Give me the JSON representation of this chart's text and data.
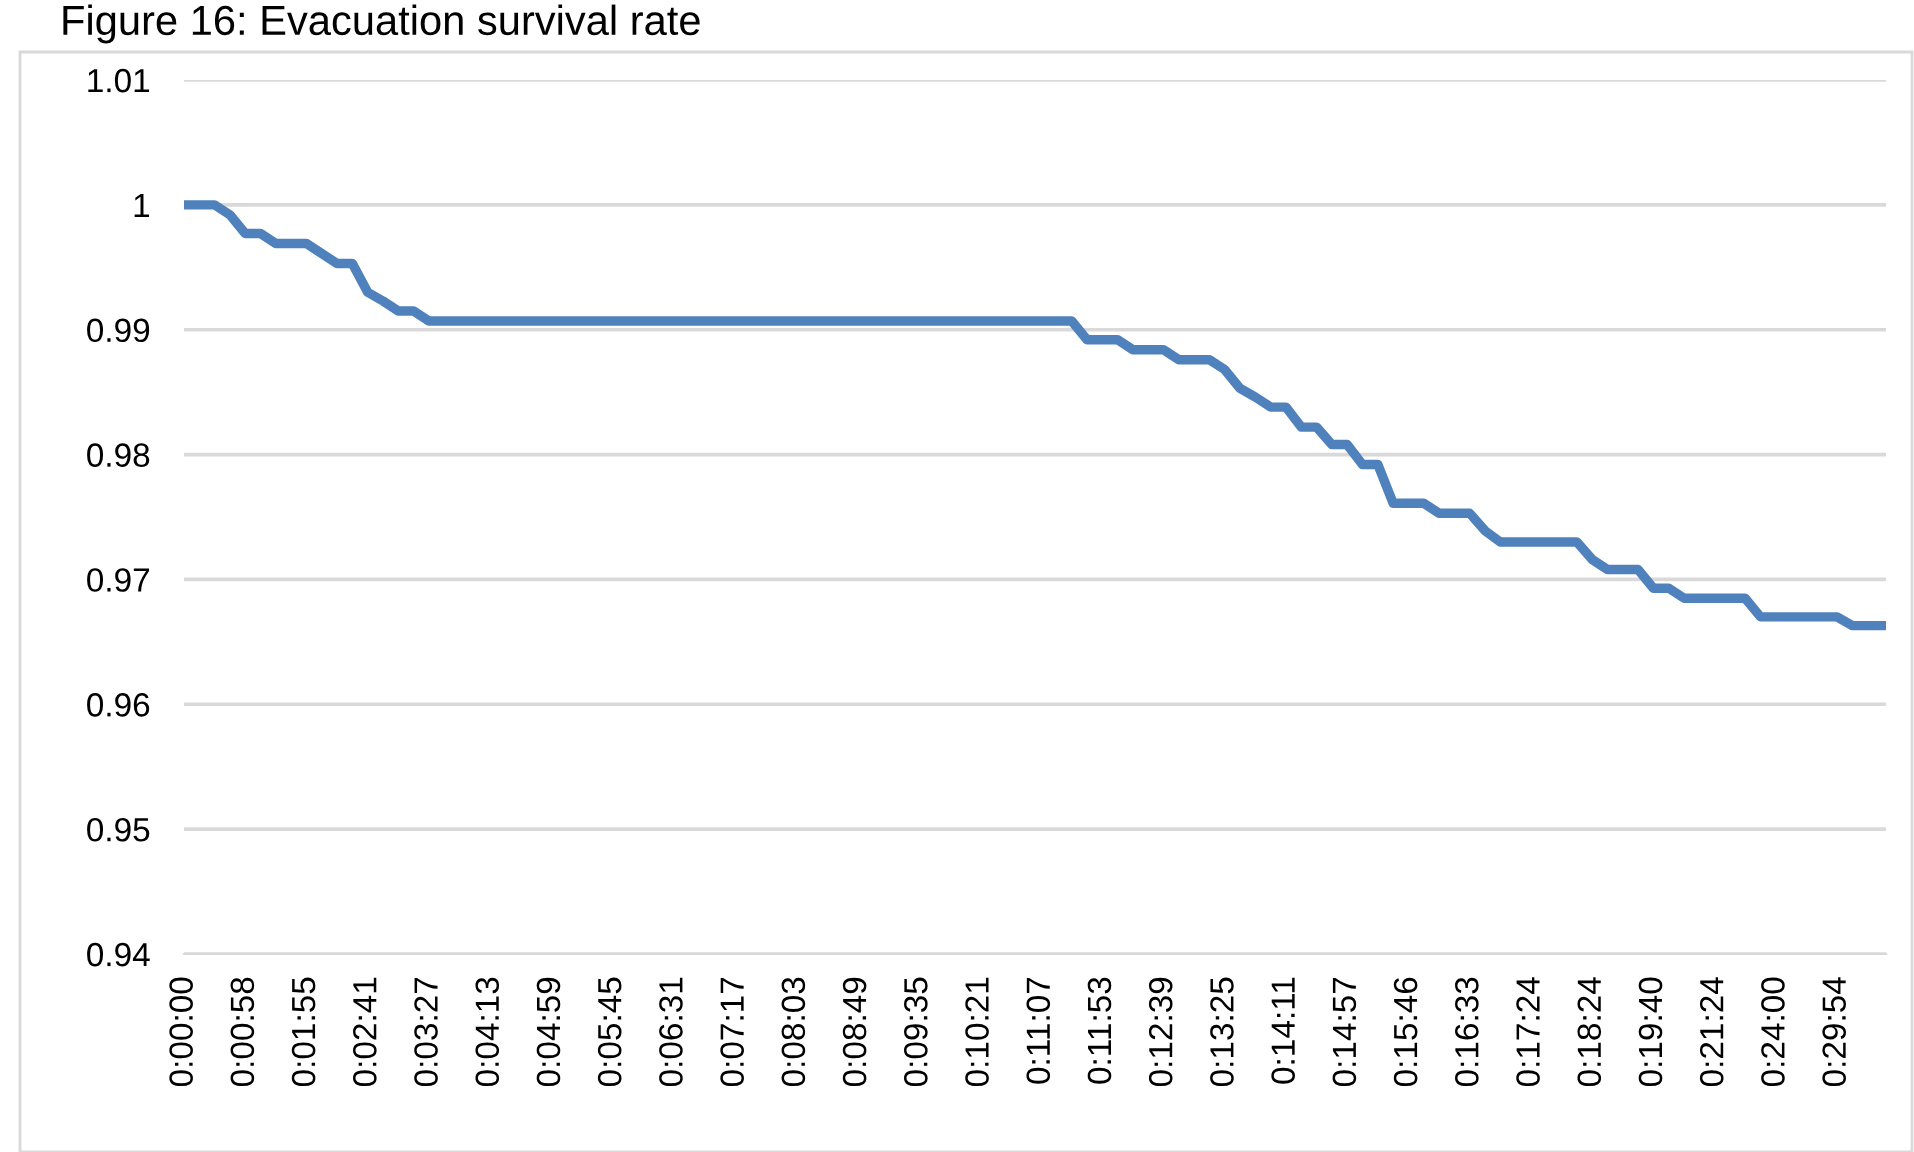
{
  "chart_data": {
    "type": "line",
    "title": "Figure 16: Evacuation survival rate",
    "categories": [
      "0:00:00",
      null,
      null,
      null,
      "0:00:58",
      null,
      null,
      null,
      "0:01:55",
      null,
      null,
      null,
      "0:02:41",
      null,
      null,
      null,
      "0:03:27",
      null,
      null,
      null,
      "0:04:13",
      null,
      null,
      null,
      "0:04:59",
      null,
      null,
      null,
      "0:05:45",
      null,
      null,
      null,
      "0:06:31",
      null,
      null,
      null,
      "0:07:17",
      null,
      null,
      null,
      "0:08:03",
      null,
      null,
      null,
      "0:08:49",
      null,
      null,
      null,
      "0:09:35",
      null,
      null,
      null,
      "0:10:21",
      null,
      null,
      null,
      "0:11:07",
      null,
      null,
      null,
      "0:11:53",
      null,
      null,
      null,
      "0:12:39",
      null,
      null,
      null,
      "0:13:25",
      null,
      null,
      null,
      "0:14:11",
      null,
      null,
      null,
      "0:14:57",
      null,
      null,
      null,
      "0:15:46",
      null,
      null,
      null,
      "0:16:33",
      null,
      null,
      null,
      "0:17:24",
      null,
      null,
      null,
      "0:18:24",
      null,
      null,
      null,
      "0:19:40",
      null,
      null,
      null,
      "0:21:24",
      null,
      null,
      null,
      "0:24:00",
      null,
      null,
      null,
      "0:29:54",
      null,
      null,
      null
    ],
    "series": [
      {
        "color": "#4f81bd",
        "values": [
          1.0,
          1.0,
          1.0,
          0.9992,
          0.9977,
          0.9977,
          0.9969,
          0.9969,
          0.9969,
          0.9961,
          0.9953,
          0.9953,
          0.993,
          0.9923,
          0.9915,
          0.9915,
          0.9907,
          0.9907,
          0.9907,
          0.9907,
          0.9907,
          0.9907,
          0.9907,
          0.9907,
          0.9907,
          0.9907,
          0.9907,
          0.9907,
          0.9907,
          0.9907,
          0.9907,
          0.9907,
          0.9907,
          0.9907,
          0.9907,
          0.9907,
          0.9907,
          0.9907,
          0.9907,
          0.9907,
          0.9907,
          0.9907,
          0.9907,
          0.9907,
          0.9907,
          0.9907,
          0.9907,
          0.9907,
          0.9907,
          0.9907,
          0.9907,
          0.9907,
          0.9907,
          0.9907,
          0.9907,
          0.9907,
          0.9907,
          0.9907,
          0.9907,
          0.9892,
          0.9892,
          0.9892,
          0.9884,
          0.9884,
          0.9884,
          0.9876,
          0.9876,
          0.9876,
          0.9868,
          0.9853,
          0.9846,
          0.9838,
          0.9838,
          0.9822,
          0.9822,
          0.9808,
          0.9808,
          0.9792,
          0.9792,
          0.9761,
          0.9761,
          0.9761,
          0.9753,
          0.9753,
          0.9753,
          0.9739,
          0.973,
          0.973,
          0.973,
          0.973,
          0.973,
          0.973,
          0.9716,
          0.9708,
          0.9708,
          0.9708,
          0.9693,
          0.9693,
          0.9685,
          0.9685,
          0.9685,
          0.9685,
          0.9685,
          0.967,
          0.967,
          0.967,
          0.967,
          0.967,
          0.967,
          0.9663,
          0.9663,
          0.9663
        ]
      }
    ],
    "ylim": [
      0.94,
      1.01
    ],
    "yticks": [
      0.94,
      0.95,
      0.96,
      0.97,
      0.98,
      0.99,
      1,
      1.01
    ],
    "grid": "y",
    "marker": "none",
    "line_style": "solid"
  }
}
